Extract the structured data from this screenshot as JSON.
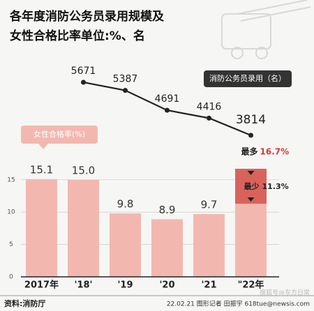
{
  "chart_data": [
    {
      "type": "bar",
      "title": "各年度消防公务员录用规模及",
      "subtitle": "女性合格比率单位:%、名",
      "legend": "女性合格率(%)",
      "color": "#f2b8b0",
      "label_color": "#333",
      "categories": [
        "2017年",
        "'18'",
        "'19",
        "'20",
        "'21",
        "\"22年"
      ],
      "values": [
        15.1,
        15.0,
        9.8,
        8.9,
        9.7,
        16.7
      ],
      "value_labels": [
        "15.1",
        "15.0",
        "9.8",
        "8.9",
        "9.7",
        null
      ],
      "range": {
        "category": 5,
        "max": 16.7,
        "min": 11.3,
        "max_label": "最多",
        "min_label": "最少",
        "max_value_label": "16.7%",
        "min_value_label": "11.3%",
        "color": "#d9635c"
      },
      "ylim": [
        0,
        18
      ],
      "yticks": [
        0,
        5,
        10,
        15
      ],
      "grid": true
    },
    {
      "type": "line",
      "series": [
        {
          "name": "消防公务员录用（名）",
          "color": "#222",
          "values": [
            null,
            5671,
            5387,
            4691,
            4416,
            3814
          ]
        }
      ]
    }
  ],
  "footer": {
    "source": "资料:消防厅",
    "credit": "22.02.21 图形记者 田振宇 618tue@newsis.com",
    "watermark": "搜狐号@东方日常"
  }
}
